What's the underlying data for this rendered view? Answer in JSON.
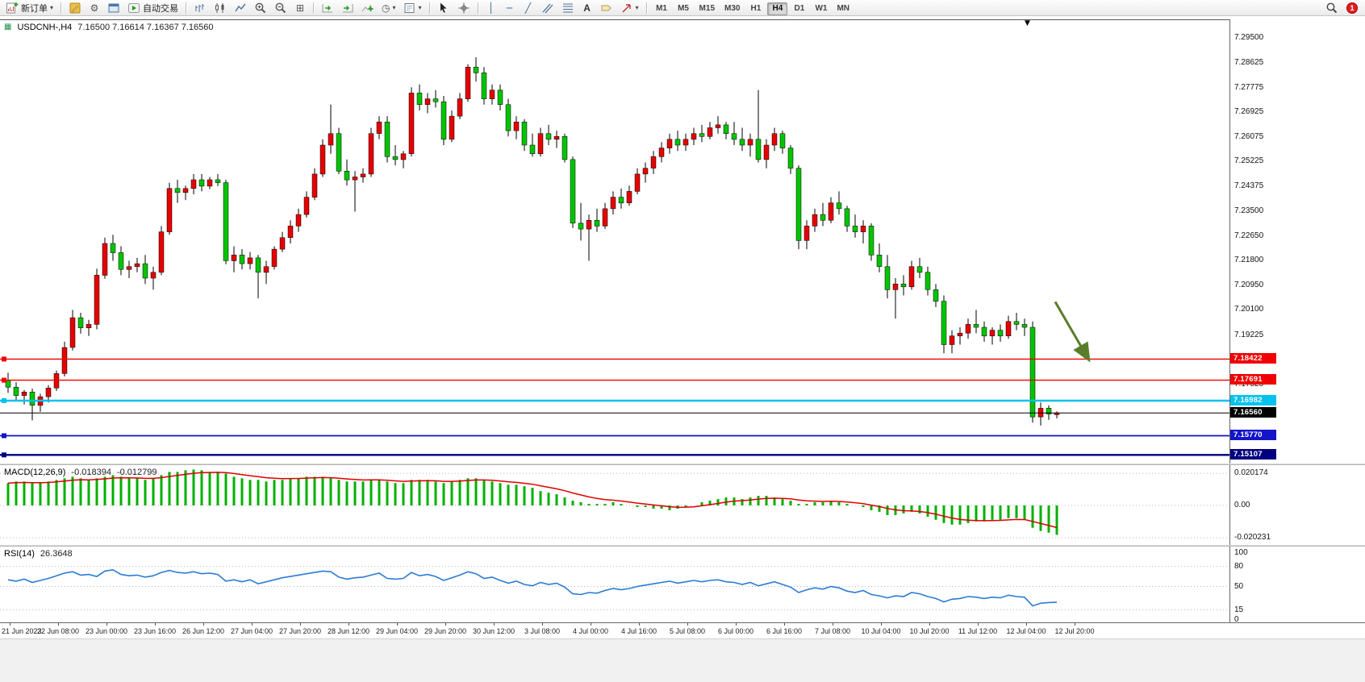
{
  "toolbar": {
    "new_order_label": "新订单",
    "autotrade_label": "自动交易",
    "timeframes": [
      "M1",
      "M5",
      "M15",
      "M30",
      "H1",
      "H4",
      "D1",
      "W1",
      "MN"
    ],
    "active_timeframe": "H4",
    "notification_count": "1"
  },
  "icons": {
    "gear": "⚙",
    "tile": "⊞",
    "clock": "◷",
    "caret": "▾",
    "text_tool": "A",
    "shift_marker": "▼",
    "vline": "│",
    "hline": "─",
    "trendline": "╱",
    "window_icon": "▦"
  },
  "chart": {
    "symbol_period": "USDCNH-,H4",
    "ohlc": "7.16500 7.16614 7.16367 7.16560"
  },
  "chart_data": {
    "type": "candlestick",
    "symbol": "USDCNH-",
    "period": "H4",
    "ohlc": {
      "open": "7.16500",
      "high": "7.16614",
      "low": "7.16367",
      "close": "7.16560"
    },
    "bull_color": "#e60000",
    "bear_color": "#00c400",
    "y_axis_labels": [
      "7.29500",
      "7.28625",
      "7.27775",
      "7.26925",
      "7.26075",
      "7.25225",
      "7.24375",
      "7.23500",
      "7.22650",
      "7.21800",
      "7.20950",
      "7.20100",
      "7.19225",
      "7.17525",
      "7.14975"
    ],
    "price_lines": [
      {
        "label": "7.18422",
        "value": 7.18422,
        "color": "#f00000",
        "lw": 1.4,
        "handle": true,
        "kind": "resistance-line"
      },
      {
        "label": "7.17691",
        "value": 7.17691,
        "color": "#f00000",
        "lw": 1.4,
        "handle": true,
        "kind": "resistance-line"
      },
      {
        "label": "7.16982",
        "value": 7.16982,
        "color": "#00c2ee",
        "lw": 2.4,
        "handle": true,
        "kind": "support-line"
      },
      {
        "label": "7.16560",
        "value": 7.1656,
        "color": "#000000",
        "lw": 1.0,
        "handle": false,
        "kind": "current-price-line"
      },
      {
        "label": "7.15770",
        "value": 7.1577,
        "color": "#1414c8",
        "lw": 1.8,
        "handle": true,
        "kind": "support-line"
      },
      {
        "label": "7.15107",
        "value": 7.15107,
        "color": "#000080",
        "lw": 2.4,
        "handle": true,
        "kind": "support-line"
      }
    ],
    "x_labels": [
      "21 Jun 2023",
      "22 Jun 08:00",
      "23 Jun 00:00",
      "23 Jun 16:00",
      "26 Jun 12:00",
      "27 Jun 04:00",
      "27 Jun 20:00",
      "28 Jun 12:00",
      "29 Jun 04:00",
      "29 Jun 20:00",
      "30 Jun 12:00",
      "3 Jul 08:00",
      "4 Jul 00:00",
      "4 Jul 16:00",
      "5 Jul 08:00",
      "6 Jul 00:00",
      "6 Jul 16:00",
      "7 Jul 08:00",
      "10 Jul 04:00",
      "10 Jul 20:00",
      "11 Jul 12:00",
      "12 Jul 04:00",
      "12 Jul 20:00"
    ],
    "candles": [
      [
        7.177,
        7.1795,
        7.1725,
        7.1745
      ],
      [
        7.1745,
        7.1762,
        7.17,
        7.1716
      ],
      [
        7.1716,
        7.1735,
        7.1685,
        7.1728
      ],
      [
        7.1728,
        7.174,
        7.163,
        7.1682
      ],
      [
        7.1682,
        7.1722,
        7.166,
        7.1712
      ],
      [
        7.1712,
        7.1752,
        7.1692,
        7.1742
      ],
      [
        7.1742,
        7.1802,
        7.1732,
        7.1792
      ],
      [
        7.1792,
        7.1902,
        7.1782,
        7.1882
      ],
      [
        7.1882,
        7.2012,
        7.1872,
        7.1985
      ],
      [
        7.1985,
        7.2002,
        7.193,
        7.195
      ],
      [
        7.195,
        7.1978,
        7.1922,
        7.1962
      ],
      [
        7.1962,
        7.2155,
        7.1945,
        7.2132
      ],
      [
        7.2132,
        7.2262,
        7.212,
        7.2242
      ],
      [
        7.2242,
        7.2272,
        7.2182,
        7.221
      ],
      [
        7.221,
        7.2232,
        7.2132,
        7.2152
      ],
      [
        7.2152,
        7.2182,
        7.2122,
        7.2162
      ],
      [
        7.2162,
        7.2192,
        7.2142,
        7.2172
      ],
      [
        7.2172,
        7.2202,
        7.2102,
        7.2122
      ],
      [
        7.2122,
        7.2162,
        7.2082,
        7.2142
      ],
      [
        7.2142,
        7.2302,
        7.2132,
        7.2282
      ],
      [
        7.2282,
        7.2452,
        7.2272,
        7.2432
      ],
      [
        7.2432,
        7.2462,
        7.2382,
        7.2418
      ],
      [
        7.2418,
        7.2442,
        7.2392,
        7.2432
      ],
      [
        7.2432,
        7.2482,
        7.2412,
        7.2462
      ],
      [
        7.2462,
        7.2482,
        7.2422,
        7.244
      ],
      [
        7.244,
        7.2472,
        7.243,
        7.2462
      ],
      [
        7.2462,
        7.2482,
        7.244,
        7.2452
      ],
      [
        7.2452,
        7.2462,
        7.217,
        7.2182
      ],
      [
        7.2182,
        7.2232,
        7.2142,
        7.2202
      ],
      [
        7.2202,
        7.2222,
        7.2152,
        7.2172
      ],
      [
        7.2172,
        7.2212,
        7.2152,
        7.2192
      ],
      [
        7.2192,
        7.2202,
        7.2052,
        7.2142
      ],
      [
        7.2142,
        7.2182,
        7.2102,
        7.2162
      ],
      [
        7.2162,
        7.2232,
        7.2152,
        7.2222
      ],
      [
        7.2222,
        7.2282,
        7.2212,
        7.2262
      ],
      [
        7.2262,
        7.2322,
        7.2242,
        7.2302
      ],
      [
        7.2302,
        7.2362,
        7.2282,
        7.2342
      ],
      [
        7.2342,
        7.2422,
        7.2332,
        7.2402
      ],
      [
        7.2402,
        7.2502,
        7.2392,
        7.2482
      ],
      [
        7.2482,
        7.2602,
        7.2472,
        7.2582
      ],
      [
        7.2582,
        7.2722,
        7.2552,
        7.2622
      ],
      [
        7.2622,
        7.2642,
        7.2482,
        7.2492
      ],
      [
        7.2492,
        7.2532,
        7.2442,
        7.2462
      ],
      [
        7.2462,
        7.2492,
        7.2352,
        7.2472
      ],
      [
        7.2472,
        7.2502,
        7.2452,
        7.2482
      ],
      [
        7.2482,
        7.2642,
        7.2472,
        7.2622
      ],
      [
        7.2622,
        7.2682,
        7.2602,
        7.2662
      ],
      [
        7.2662,
        7.2682,
        7.2522,
        7.2542
      ],
      [
        7.2542,
        7.2582,
        7.2512,
        7.2532
      ],
      [
        7.2532,
        7.2562,
        7.2502,
        7.2552
      ],
      [
        7.2552,
        7.2782,
        7.2542,
        7.2762
      ],
      [
        7.2762,
        7.2792,
        7.2702,
        7.2722
      ],
      [
        7.2722,
        7.2762,
        7.2692,
        7.2742
      ],
      [
        7.2742,
        7.2772,
        7.2712,
        7.2732
      ],
      [
        7.2732,
        7.2752,
        7.2582,
        7.2602
      ],
      [
        7.2602,
        7.2702,
        7.2592,
        7.2682
      ],
      [
        7.2682,
        7.2762,
        7.2672,
        7.2742
      ],
      [
        7.2742,
        7.2862,
        7.2732,
        7.2852
      ],
      [
        7.2852,
        7.2886,
        7.2802,
        7.2832
      ],
      [
        7.2832,
        7.2852,
        7.2722,
        7.2742
      ],
      [
        7.2742,
        7.2792,
        7.2722,
        7.2772
      ],
      [
        7.2772,
        7.2792,
        7.2702,
        7.2722
      ],
      [
        7.2722,
        7.2742,
        7.2612,
        7.2632
      ],
      [
        7.2632,
        7.2682,
        7.2602,
        7.2662
      ],
      [
        7.2662,
        7.2672,
        7.2562,
        7.2582
      ],
      [
        7.2582,
        7.2622,
        7.2542,
        7.2552
      ],
      [
        7.2552,
        7.2642,
        7.2542,
        7.2622
      ],
      [
        7.2622,
        7.2652,
        7.2582,
        7.2602
      ],
      [
        7.2602,
        7.2632,
        7.2572,
        7.2612
      ],
      [
        7.2612,
        7.2622,
        7.2522,
        7.2532
      ],
      [
        7.2532,
        7.2542,
        7.2295,
        7.2312
      ],
      [
        7.2312,
        7.2382,
        7.2252,
        7.2292
      ],
      [
        7.2292,
        7.2342,
        7.2182,
        7.2322
      ],
      [
        7.2322,
        7.2362,
        7.2282,
        7.2302
      ],
      [
        7.2302,
        7.2382,
        7.2292,
        7.2362
      ],
      [
        7.2362,
        7.2422,
        7.2342,
        7.2402
      ],
      [
        7.2402,
        7.2432,
        7.2362,
        7.2382
      ],
      [
        7.2382,
        7.2442,
        7.2372,
        7.2422
      ],
      [
        7.2422,
        7.2502,
        7.2412,
        7.2482
      ],
      [
        7.2482,
        7.2522,
        7.2452,
        7.2502
      ],
      [
        7.2502,
        7.2562,
        7.2482,
        7.2542
      ],
      [
        7.2542,
        7.2592,
        7.2522,
        7.2572
      ],
      [
        7.2572,
        7.2622,
        7.2552,
        7.2602
      ],
      [
        7.2602,
        7.2632,
        7.2562,
        7.2582
      ],
      [
        7.2582,
        7.2622,
        7.2562,
        7.2602
      ],
      [
        7.2602,
        7.2642,
        7.2582,
        7.2622
      ],
      [
        7.2622,
        7.2652,
        7.2592,
        7.2612
      ],
      [
        7.2612,
        7.2662,
        7.2602,
        7.2642
      ],
      [
        7.2642,
        7.2682,
        7.2622,
        7.2652
      ],
      [
        7.2652,
        7.2662,
        7.2602,
        7.2622
      ],
      [
        7.2622,
        7.2662,
        7.2582,
        7.2602
      ],
      [
        7.2602,
        7.2642,
        7.2562,
        7.2582
      ],
      [
        7.2582,
        7.2622,
        7.2542,
        7.2602
      ],
      [
        7.2602,
        7.2772,
        7.2522,
        7.2532
      ],
      [
        7.2532,
        7.2602,
        7.2502,
        7.2582
      ],
      [
        7.2582,
        7.2642,
        7.2562,
        7.2622
      ],
      [
        7.2622,
        7.2632,
        7.2552,
        7.2572
      ],
      [
        7.2572,
        7.2582,
        7.2482,
        7.2502
      ],
      [
        7.2502,
        7.2512,
        7.2222,
        7.2252
      ],
      [
        7.2252,
        7.2322,
        7.2222,
        7.2302
      ],
      [
        7.2302,
        7.2362,
        7.2282,
        7.2342
      ],
      [
        7.2342,
        7.2382,
        7.2302,
        7.2322
      ],
      [
        7.2322,
        7.2402,
        7.2312,
        7.2382
      ],
      [
        7.2382,
        7.2422,
        7.2342,
        7.2362
      ],
      [
        7.2362,
        7.2372,
        7.2282,
        7.2302
      ],
      [
        7.2302,
        7.2342,
        7.2262,
        7.2282
      ],
      [
        7.2282,
        7.2322,
        7.2242,
        7.2302
      ],
      [
        7.2302,
        7.2312,
        7.2182,
        7.2202
      ],
      [
        7.2202,
        7.2242,
        7.2142,
        7.2162
      ],
      [
        7.2162,
        7.2202,
        7.2052,
        7.2082
      ],
      [
        7.2082,
        7.2122,
        7.1982,
        7.2102
      ],
      [
        7.2102,
        7.2132,
        7.2062,
        7.2092
      ],
      [
        7.2092,
        7.2182,
        7.2082,
        7.2162
      ],
      [
        7.2162,
        7.2192,
        7.2122,
        7.2142
      ],
      [
        7.2142,
        7.2162,
        7.2062,
        7.2082
      ],
      [
        7.2082,
        7.2102,
        7.2022,
        7.2042
      ],
      [
        7.2042,
        7.2062,
        7.1862,
        7.1892
      ],
      [
        7.1892,
        7.1942,
        7.1862,
        7.1922
      ],
      [
        7.1922,
        7.1952,
        7.1892,
        7.1932
      ],
      [
        7.1932,
        7.1982,
        7.1912,
        7.1962
      ],
      [
        7.1962,
        7.2012,
        7.1932,
        7.1952
      ],
      [
        7.1952,
        7.1972,
        7.1902,
        7.1922
      ],
      [
        7.1922,
        7.1952,
        7.1892,
        7.1942
      ],
      [
        7.1942,
        7.1962,
        7.1902,
        7.1922
      ],
      [
        7.1922,
        7.1992,
        7.1912,
        7.1972
      ],
      [
        7.1972,
        7.2002,
        7.1942,
        7.1962
      ],
      [
        7.1962,
        7.1982,
        7.1922,
        7.1952
      ],
      [
        7.1952,
        7.1972,
        7.1622,
        7.1642
      ],
      [
        7.1642,
        7.1692,
        7.1612,
        7.1672
      ],
      [
        7.1672,
        7.1682,
        7.1632,
        7.1652
      ],
      [
        7.165,
        7.1661,
        7.1637,
        7.1656
      ]
    ],
    "arrow": {
      "i1": 129.8,
      "p1": 7.204,
      "i2": 134.0,
      "p2": 7.1838,
      "color": "#5a7d2a",
      "direction": "down-right"
    },
    "macd": {
      "label": "MACD(12,26,9)",
      "value_macd": "-0.018394",
      "value_signal": "-0.012799",
      "hist_color": "#00b000",
      "signal_color": "#e00000",
      "axis_labels": [
        "0.020174",
        "0.00",
        "-0.020231"
      ],
      "levels": [
        0.020174,
        0,
        -0.020231
      ],
      "histogram": [
        0.014,
        0.015,
        0.015,
        0.014,
        0.014,
        0.015,
        0.016,
        0.017,
        0.018,
        0.017,
        0.016,
        0.017,
        0.018,
        0.019,
        0.018,
        0.017,
        0.017,
        0.016,
        0.017,
        0.019,
        0.021,
        0.021,
        0.022,
        0.0225,
        0.022,
        0.021,
        0.021,
        0.02,
        0.018,
        0.017,
        0.016,
        0.016,
        0.015,
        0.016,
        0.016,
        0.017,
        0.017,
        0.018,
        0.018,
        0.018,
        0.017,
        0.016,
        0.015,
        0.015,
        0.015,
        0.016,
        0.016,
        0.015,
        0.014,
        0.014,
        0.016,
        0.016,
        0.016,
        0.015,
        0.014,
        0.015,
        0.016,
        0.017,
        0.017,
        0.016,
        0.015,
        0.014,
        0.013,
        0.013,
        0.012,
        0.011,
        0.009,
        0.008,
        0.007,
        0.005,
        0.003,
        0.002,
        0.001,
        0.001,
        0.001,
        0.002,
        0.001,
        0.0,
        -0.001,
        -0.001,
        -0.002,
        -0.002,
        -0.003,
        -0.002,
        -0.001,
        0.0,
        0.002,
        0.003,
        0.004,
        0.005,
        0.005,
        0.004,
        0.005,
        0.006,
        0.006,
        0.005,
        0.004,
        0.003,
        0.001,
        0.001,
        0.002,
        0.002,
        0.003,
        0.002,
        0.001,
        0.0,
        -0.001,
        -0.003,
        -0.004,
        -0.006,
        -0.006,
        -0.005,
        -0.004,
        -0.005,
        -0.007,
        -0.009,
        -0.011,
        -0.012,
        -0.012,
        -0.011,
        -0.01,
        -0.01,
        -0.009,
        -0.009,
        -0.008,
        -0.008,
        -0.009,
        -0.014,
        -0.016,
        -0.017,
        -0.0184
      ]
    },
    "rsi": {
      "label": "RSI(14)",
      "value": "26.3648",
      "line_color": "#2b7cd3",
      "axis_labels": [
        "100",
        "80",
        "50",
        "15",
        "0"
      ],
      "axis_values": [
        100,
        80,
        50,
        15,
        0
      ],
      "levels": [
        80,
        50,
        15
      ],
      "values": [
        60,
        58,
        61,
        56,
        59,
        62,
        66,
        70,
        72,
        67,
        68,
        65,
        73,
        75,
        68,
        66,
        67,
        64,
        66,
        71,
        74,
        71,
        70,
        72,
        69,
        70,
        68,
        58,
        60,
        57,
        60,
        54,
        57,
        60,
        63,
        65,
        67,
        69,
        71,
        73,
        72,
        64,
        61,
        63,
        64,
        67,
        70,
        62,
        61,
        62,
        71,
        66,
        68,
        65,
        59,
        63,
        67,
        72,
        69,
        62,
        64,
        59,
        55,
        58,
        53,
        51,
        56,
        53,
        55,
        49,
        39,
        38,
        41,
        40,
        44,
        47,
        45,
        47,
        50,
        52,
        54,
        56,
        58,
        55,
        57,
        59,
        57,
        59,
        60,
        57,
        56,
        53,
        56,
        51,
        54,
        57,
        53,
        49,
        41,
        45,
        48,
        46,
        50,
        48,
        43,
        41,
        44,
        38,
        36,
        33,
        36,
        35,
        41,
        39,
        35,
        32,
        27,
        31,
        32,
        35,
        34,
        32,
        34,
        33,
        37,
        35,
        34,
        21,
        25,
        26,
        26.4
      ]
    }
  }
}
